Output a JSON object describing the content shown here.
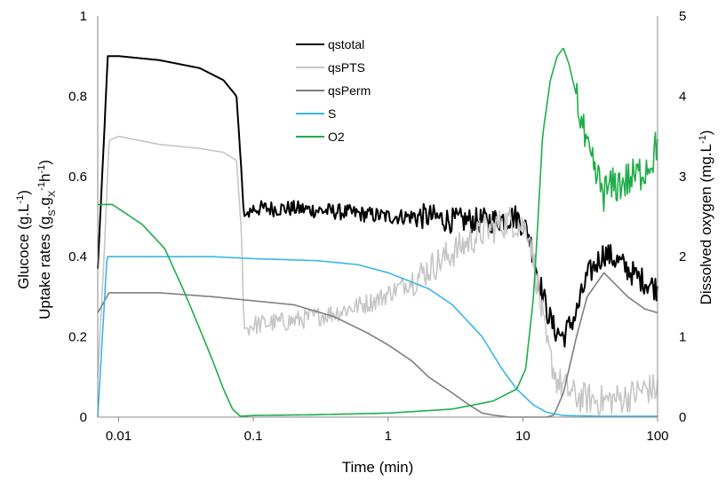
{
  "chart_data": {
    "type": "line",
    "xlabel": "Time (min)",
    "x_scale": "log",
    "xlim": [
      0.007,
      100
    ],
    "x_ticks": [
      {
        "value": 0.01,
        "label": "0.01"
      },
      {
        "value": 0.1,
        "label": "0.1"
      },
      {
        "value": 1,
        "label": "1"
      },
      {
        "value": 10,
        "label": "10"
      },
      {
        "value": 100,
        "label": "100"
      }
    ],
    "ylabel_left_line1": "Glucoce (g.L",
    "ylabel_left_line1_sup": "-1",
    "ylabel_left_line1_end": ")",
    "ylabel_left_line2": "Uptake rates (g",
    "ylabel_left_line2_sub1": "S",
    "ylabel_left_line2_dot": ".g",
    "ylabel_left_line2_sub2": "X",
    "ylabel_left_line2_sup1": "-1",
    "ylabel_left_line2_h": "h",
    "ylabel_left_line2_sup2": "-1",
    "ylabel_left_line2_end": ")",
    "ylim_left": [
      0,
      1
    ],
    "y_ticks_left": [
      "0",
      "0.2",
      "0.4",
      "0.6",
      "0.8",
      "1"
    ],
    "ylabel_right": "Dissolved oxygen (mg.L",
    "ylabel_right_sup": "-1",
    "ylabel_right_end": ")",
    "ylim_right": [
      0,
      5
    ],
    "y_ticks_right": [
      "0",
      "1",
      "2",
      "3",
      "4",
      "5"
    ],
    "grid": false,
    "legend_position": "top-center",
    "series": [
      {
        "name": "qstotal",
        "color": "#000000",
        "axis": "left",
        "noise": 0.02,
        "points": [
          [
            0.007,
            0.37
          ],
          [
            0.0078,
            0.7
          ],
          [
            0.0083,
            0.9
          ],
          [
            0.01,
            0.9
          ],
          [
            0.02,
            0.89
          ],
          [
            0.04,
            0.87
          ],
          [
            0.06,
            0.84
          ],
          [
            0.075,
            0.8
          ],
          [
            0.082,
            0.6
          ],
          [
            0.085,
            0.5
          ],
          [
            0.1,
            0.52
          ],
          [
            0.2,
            0.52
          ],
          [
            0.5,
            0.51
          ],
          [
            1,
            0.5
          ],
          [
            2,
            0.5
          ],
          [
            3,
            0.49
          ],
          [
            4,
            0.49
          ],
          [
            6,
            0.49
          ],
          [
            9,
            0.5
          ],
          [
            11,
            0.46
          ],
          [
            13,
            0.35
          ],
          [
            15,
            0.27
          ],
          [
            17,
            0.22
          ],
          [
            20,
            0.2
          ],
          [
            25,
            0.26
          ],
          [
            30,
            0.35
          ],
          [
            40,
            0.41
          ],
          [
            50,
            0.39
          ],
          [
            70,
            0.35
          ],
          [
            100,
            0.32
          ]
        ]
      },
      {
        "name": "qsPTS",
        "color": "#c6c6c6",
        "axis": "left",
        "noise": 0.025,
        "points": [
          [
            0.007,
            0.1
          ],
          [
            0.0078,
            0.4
          ],
          [
            0.0085,
            0.69
          ],
          [
            0.01,
            0.7
          ],
          [
            0.02,
            0.68
          ],
          [
            0.04,
            0.67
          ],
          [
            0.06,
            0.66
          ],
          [
            0.075,
            0.64
          ],
          [
            0.082,
            0.45
          ],
          [
            0.085,
            0.22
          ],
          [
            0.1,
            0.23
          ],
          [
            0.2,
            0.24
          ],
          [
            0.4,
            0.26
          ],
          [
            0.8,
            0.29
          ],
          [
            1.5,
            0.34
          ],
          [
            3,
            0.41
          ],
          [
            5,
            0.46
          ],
          [
            8,
            0.49
          ],
          [
            11,
            0.47
          ],
          [
            13,
            0.32
          ],
          [
            15,
            0.18
          ],
          [
            18,
            0.09
          ],
          [
            25,
            0.05
          ],
          [
            40,
            0.04
          ],
          [
            60,
            0.05
          ],
          [
            80,
            0.07
          ],
          [
            100,
            0.07
          ]
        ]
      },
      {
        "name": "qsPerm",
        "color": "#7f7f7f",
        "axis": "left",
        "noise": 0,
        "points": [
          [
            0.007,
            0.26
          ],
          [
            0.0085,
            0.31
          ],
          [
            0.01,
            0.31
          ],
          [
            0.02,
            0.31
          ],
          [
            0.05,
            0.3
          ],
          [
            0.1,
            0.29
          ],
          [
            0.2,
            0.28
          ],
          [
            0.4,
            0.25
          ],
          [
            0.7,
            0.21
          ],
          [
            1,
            0.18
          ],
          [
            1.5,
            0.14
          ],
          [
            2,
            0.1
          ],
          [
            3,
            0.06
          ],
          [
            4,
            0.03
          ],
          [
            5,
            0.01
          ],
          [
            6,
            0.005
          ],
          [
            8,
            0.0
          ],
          [
            10,
            0.0
          ],
          [
            13,
            0.0
          ],
          [
            15,
            0.0
          ],
          [
            17,
            0.005
          ],
          [
            20,
            0.06
          ],
          [
            25,
            0.2
          ],
          [
            30,
            0.3
          ],
          [
            40,
            0.36
          ],
          [
            60,
            0.3
          ],
          [
            80,
            0.27
          ],
          [
            100,
            0.26
          ]
        ]
      },
      {
        "name": "S",
        "color": "#38b7e8",
        "axis": "left",
        "noise": 0,
        "points": [
          [
            0.007,
            0.0
          ],
          [
            0.0082,
            0.4
          ],
          [
            0.01,
            0.4
          ],
          [
            0.05,
            0.4
          ],
          [
            0.1,
            0.395
          ],
          [
            0.3,
            0.39
          ],
          [
            0.6,
            0.38
          ],
          [
            1,
            0.36
          ],
          [
            2,
            0.32
          ],
          [
            3,
            0.28
          ],
          [
            5,
            0.2
          ],
          [
            7,
            0.12
          ],
          [
            9,
            0.07
          ],
          [
            12,
            0.03
          ],
          [
            15,
            0.012
          ],
          [
            20,
            0.004
          ],
          [
            40,
            0.002
          ],
          [
            100,
            0.002
          ]
        ]
      },
      {
        "name": "O2",
        "color": "#1fad4a",
        "axis": "right",
        "noise": 0,
        "points": [
          [
            0.007,
            2.65
          ],
          [
            0.009,
            2.65
          ],
          [
            0.015,
            2.4
          ],
          [
            0.022,
            2.1
          ],
          [
            0.03,
            1.6
          ],
          [
            0.04,
            1.1
          ],
          [
            0.05,
            0.7
          ],
          [
            0.06,
            0.35
          ],
          [
            0.07,
            0.1
          ],
          [
            0.08,
            0.01
          ],
          [
            0.1,
            0.02
          ],
          [
            0.3,
            0.03
          ],
          [
            1,
            0.05
          ],
          [
            3,
            0.1
          ],
          [
            6,
            0.2
          ],
          [
            9,
            0.35
          ],
          [
            10.5,
            0.6
          ],
          [
            12,
            1.5
          ],
          [
            13,
            2.5
          ],
          [
            14,
            3.5
          ],
          [
            16,
            4.2
          ],
          [
            18,
            4.5
          ],
          [
            20,
            4.6
          ],
          [
            22,
            4.4
          ],
          [
            25,
            4.0
          ],
          [
            30,
            3.3
          ],
          [
            35,
            3.0
          ],
          [
            40,
            2.8
          ],
          [
            50,
            2.9
          ],
          [
            70,
            3.0
          ],
          [
            90,
            3.2
          ],
          [
            100,
            3.4
          ]
        ]
      }
    ]
  }
}
